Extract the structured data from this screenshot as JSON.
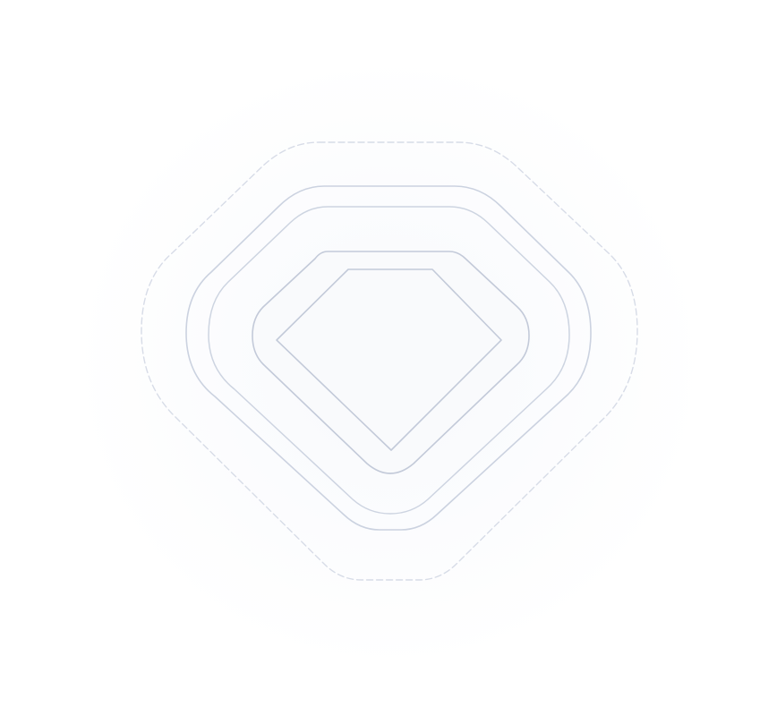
{
  "emblem": {
    "icon": "gem-icon",
    "colors": {
      "background": "#ffffff",
      "stroke_outer": "#d7dce7",
      "stroke_mid": "#c9d0de",
      "stroke_inner": "#c3cad9",
      "inner_fill": "#f9fafc"
    }
  }
}
